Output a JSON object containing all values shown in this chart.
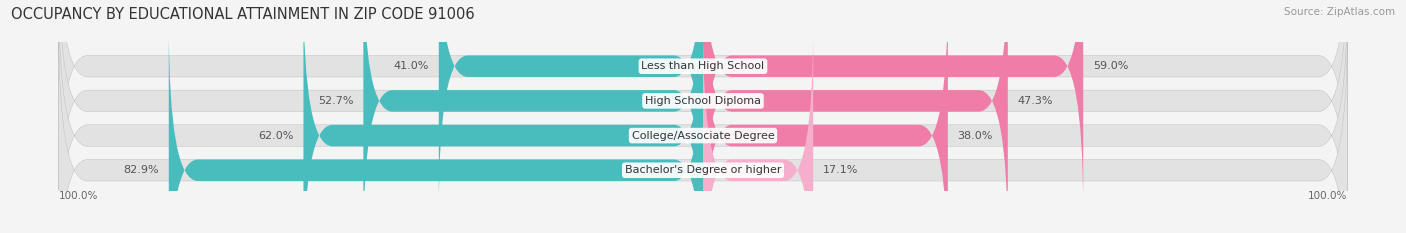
{
  "title": "OCCUPANCY BY EDUCATIONAL ATTAINMENT IN ZIP CODE 91006",
  "source": "Source: ZipAtlas.com",
  "categories": [
    "Less than High School",
    "High School Diploma",
    "College/Associate Degree",
    "Bachelor's Degree or higher"
  ],
  "owner_values": [
    41.0,
    52.7,
    62.0,
    82.9
  ],
  "renter_values": [
    59.0,
    47.3,
    38.0,
    17.1
  ],
  "owner_color": "#49BCBD",
  "renter_color": "#F07CA8",
  "renter_color_light": "#F5AECB",
  "bar_bg_color": "#E2E2E2",
  "background_color": "#F4F4F4",
  "title_fontsize": 10.5,
  "source_fontsize": 7.5,
  "label_fontsize": 8,
  "pct_fontsize": 8,
  "legend_fontsize": 8.5,
  "axis_label_fontsize": 7.5,
  "bar_height": 0.62,
  "bar_gap": 0.18
}
